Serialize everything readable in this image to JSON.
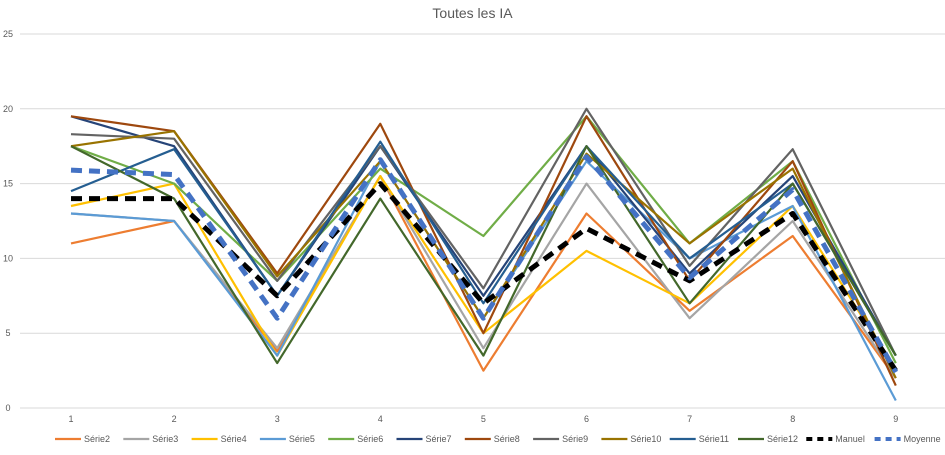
{
  "chart_data": {
    "type": "line",
    "title": "Toutes les IA",
    "xlabel": "",
    "ylabel": "",
    "categories": [
      "1",
      "2",
      "3",
      "4",
      "5",
      "6",
      "7",
      "8",
      "9"
    ],
    "ylim": [
      0,
      25
    ],
    "yticks": [
      0,
      5,
      10,
      15,
      20,
      25
    ],
    "grid": true,
    "legend_position": "bottom",
    "series": [
      {
        "name": "Série2",
        "color": "#ED7D31",
        "style": "solid",
        "values": [
          11,
          12.5,
          3.8,
          15.5,
          2.5,
          13,
          6.5,
          11.5,
          2
        ]
      },
      {
        "name": "Série3",
        "color": "#A5A5A5",
        "style": "solid",
        "values": [
          13,
          12.5,
          4,
          15.5,
          4,
          15,
          6,
          12.5,
          2
        ]
      },
      {
        "name": "Série4",
        "color": "#FFC000",
        "style": "solid",
        "values": [
          13.5,
          15,
          3.5,
          15.5,
          5,
          10.5,
          7,
          13.5,
          2.5
        ]
      },
      {
        "name": "Série5",
        "color": "#5B9BD5",
        "style": "solid",
        "values": [
          13,
          12.5,
          3.5,
          16.5,
          6,
          16.5,
          10,
          13.5,
          0.5
        ]
      },
      {
        "name": "Série6",
        "color": "#70AD47",
        "style": "solid",
        "values": [
          17.5,
          15,
          8.5,
          16,
          11.5,
          19.5,
          11,
          16.5,
          3
        ]
      },
      {
        "name": "Série7",
        "color": "#264478",
        "style": "solid",
        "values": [
          19.5,
          17.5,
          7.5,
          17.5,
          7.5,
          17.5,
          9,
          15.5,
          3.5
        ]
      },
      {
        "name": "Série8",
        "color": "#9E480E",
        "style": "solid",
        "values": [
          19.5,
          18.5,
          9,
          19,
          5,
          19.5,
          8.5,
          16.5,
          1.5
        ]
      },
      {
        "name": "Série9",
        "color": "#636363",
        "style": "solid",
        "values": [
          18.3,
          18,
          8.5,
          17.5,
          8,
          20,
          9.5,
          17.3,
          3.5
        ]
      },
      {
        "name": "Série10",
        "color": "#997300",
        "style": "solid",
        "values": [
          17.5,
          18.5,
          8.8,
          16.5,
          6,
          17,
          11,
          16,
          2
        ]
      },
      {
        "name": "Série11",
        "color": "#255E91",
        "style": "solid",
        "values": [
          14.5,
          17.3,
          7.5,
          17.8,
          7,
          17.5,
          10,
          15,
          3.5
        ]
      },
      {
        "name": "Série12",
        "color": "#43682B",
        "style": "solid",
        "values": [
          17.5,
          14,
          3,
          14,
          3.5,
          17.5,
          7,
          15,
          3.5
        ]
      },
      {
        "name": "Manuel",
        "color": "#000000",
        "style": "dashed",
        "values": [
          14,
          14,
          7.5,
          15,
          7,
          12,
          8.5,
          13,
          2.5
        ]
      },
      {
        "name": "Moyenne",
        "color": "#4472C4",
        "style": "dashed",
        "values": [
          15.9,
          15.6,
          6,
          16.6,
          6,
          16.8,
          8.7,
          14.6,
          2.4
        ]
      }
    ]
  }
}
